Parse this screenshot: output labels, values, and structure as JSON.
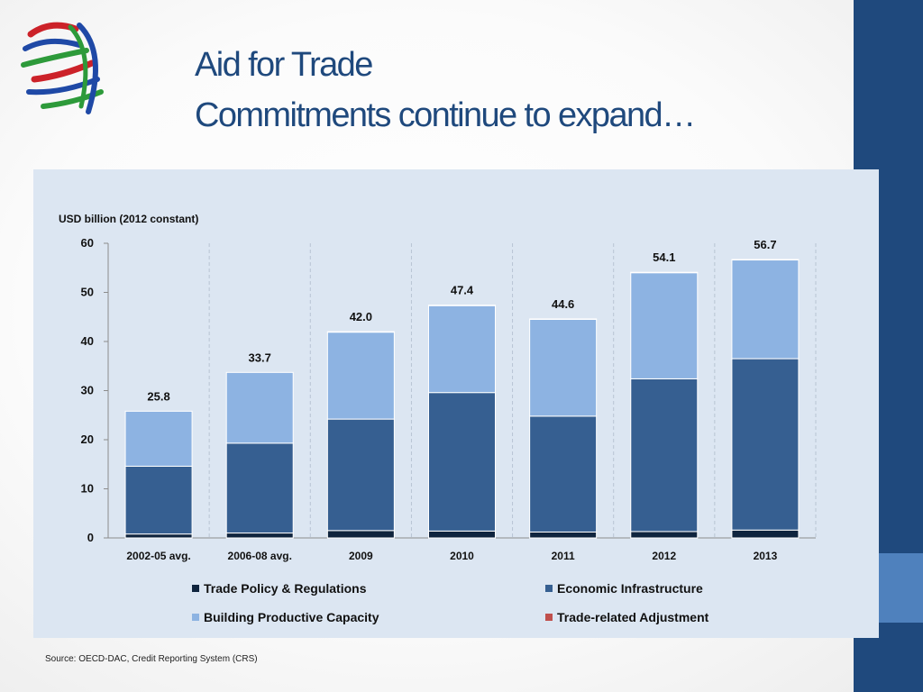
{
  "slide": {
    "title_line1": "Aid for Trade",
    "title_line2": "Commitments continue to expand…",
    "source": "Source: OECD-DAC, Credit Reporting System (CRS)",
    "logo_name": "wto-logo",
    "colors": {
      "title": "#1f497d",
      "sidebar_dark": "#1f497d",
      "sidebar_light": "#4f81bd",
      "panel": "#dce6f2"
    }
  },
  "chart_data": {
    "type": "bar",
    "stacked": true,
    "title": "",
    "ylabel": "USD billion (2012 constant)",
    "xlabel": "",
    "ylim": [
      0,
      60
    ],
    "yticks": [
      0,
      10,
      20,
      30,
      40,
      50,
      60
    ],
    "categories": [
      "2002-05 avg.",
      "2006-08 avg.",
      "2009",
      "2010",
      "2011",
      "2012",
      "2013"
    ],
    "series": [
      {
        "name": "Trade Policy & Regulations",
        "color": "#0f243e",
        "values": [
          0.8,
          1.0,
          1.5,
          1.4,
          1.2,
          1.3,
          1.6
        ]
      },
      {
        "name": "Economic Infrastructure",
        "color": "#365f91",
        "values": [
          13.8,
          18.3,
          22.7,
          28.2,
          23.6,
          31.1,
          34.9
        ]
      },
      {
        "name": "Building Productive Capacity",
        "color": "#8db3e2",
        "values": [
          11.2,
          14.4,
          17.7,
          17.7,
          19.7,
          21.6,
          20.1
        ]
      },
      {
        "name": "Trade-related Adjustment",
        "color": "#c0504d",
        "values": [
          0,
          0,
          0.1,
          0.1,
          0.1,
          0.1,
          0.1
        ]
      }
    ],
    "totals": [
      "25.8",
      "33.7",
      "42.0",
      "47.4",
      "44.6",
      "54.1",
      "56.7"
    ],
    "legend_position": "bottom"
  }
}
